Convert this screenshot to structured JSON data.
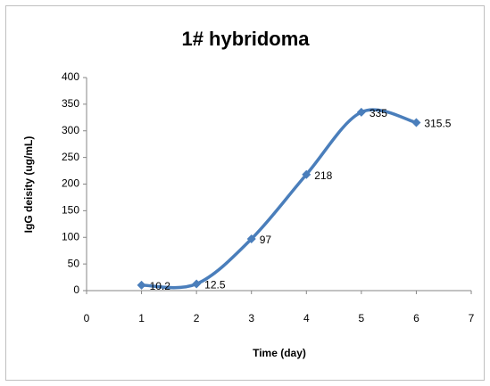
{
  "chart_data": {
    "type": "line",
    "title": "1# hybridoma",
    "x_label": "Time (day)",
    "y_label": "IgG deisity (ug/mL)",
    "x": [
      1,
      2,
      3,
      4,
      5,
      6
    ],
    "series": [
      {
        "name": "1# hybridoma",
        "color": "#4a7ebb",
        "values": [
          10.2,
          12.5,
          97,
          218,
          335,
          315.5
        ]
      }
    ],
    "xlim": [
      0,
      7
    ],
    "xticks": [
      0,
      1,
      2,
      3,
      4,
      5,
      6,
      7
    ],
    "ylim": [
      0,
      400
    ],
    "yticks": [
      0,
      50,
      100,
      150,
      200,
      250,
      300,
      350,
      400
    ],
    "smooth": true,
    "grid": false,
    "data_labels": true
  }
}
